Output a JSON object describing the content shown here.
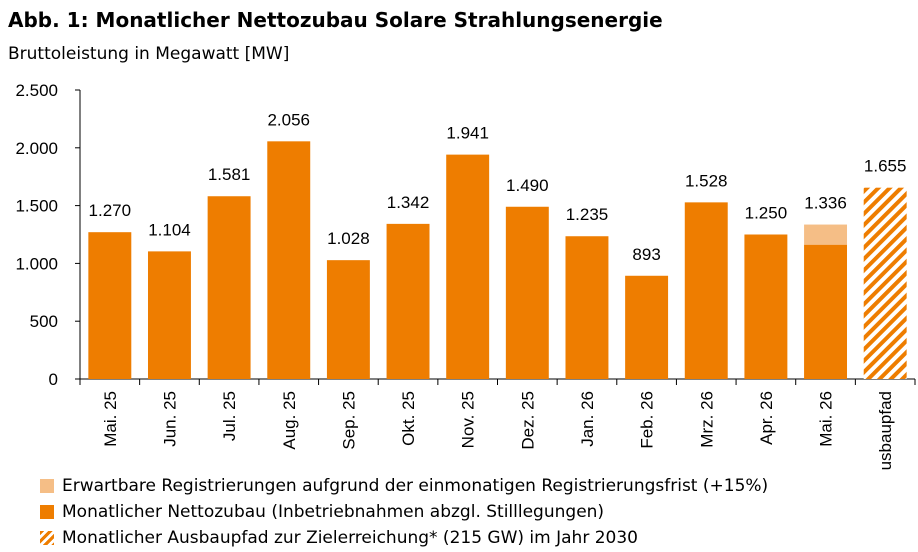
{
  "title": "Abb. 1: Monatlicher Nettozubau Solare Strahlungsenergie",
  "subtitle": "Bruttoleistung in Megawatt [MW]",
  "colors": {
    "net": "#EE7D00",
    "expected": "#F5BE86",
    "target_hatch": "#EE7D00",
    "axis": "#000000"
  },
  "legend": [
    {
      "label": "Erwartbare Registrierungen aufgrund der einmonatigen Registrierungsfrist (+15%)",
      "kind": "expected"
    },
    {
      "label": "Monatlicher Nettozubau (Inbetriebnahmen abzgl. Stilllegungen)",
      "kind": "net"
    },
    {
      "label": "Monatlicher Ausbaupfad zur Zielerreichung* (215 GW) im Jahr 2030",
      "kind": "hatch"
    }
  ],
  "chart_data": {
    "type": "bar",
    "stacked": true,
    "categories": [
      "Mai. 25",
      "Jun. 25",
      "Jul. 25",
      "Aug. 25",
      "Sep. 25",
      "Okt. 25",
      "Nov. 25",
      "Dez. 25",
      "Jan. 26",
      "Feb. 26",
      "Mrz. 26",
      "Apr. 26",
      "Mai. 26",
      "Ausbaupfad"
    ],
    "series": [
      {
        "name": "Monatlicher Nettozubau (Inbetriebnahmen abzgl. Stilllegungen)",
        "kind": "net",
        "values": [
          1270,
          1104,
          1581,
          2056,
          1028,
          1342,
          1941,
          1490,
          1235,
          893,
          1528,
          1250,
          1162,
          0
        ]
      },
      {
        "name": "Erwartbare Registrierungen aufgrund der einmonatigen Registrierungsfrist (+15%)",
        "kind": "expected",
        "values": [
          0,
          0,
          0,
          0,
          0,
          0,
          0,
          0,
          0,
          0,
          0,
          0,
          174,
          0
        ]
      },
      {
        "name": "Monatlicher Ausbaupfad zur Zielerreichung* (215 GW) im Jahr 2030",
        "kind": "hatch",
        "values": [
          0,
          0,
          0,
          0,
          0,
          0,
          0,
          0,
          0,
          0,
          0,
          0,
          0,
          1655
        ]
      }
    ],
    "data_labels": [
      "1.270",
      "1.104",
      "1.581",
      "2.056",
      "1.028",
      "1.342",
      "1.941",
      "1.490",
      "1.235",
      "893",
      "1.528",
      "1.250",
      "1.336",
      "1.655"
    ],
    "yticks": [
      0,
      500,
      1000,
      1500,
      2000,
      2500
    ],
    "ytick_labels": [
      "0",
      "500",
      "1.000",
      "1.500",
      "2.000",
      "2.500"
    ],
    "ylim": [
      0,
      2500
    ],
    "grid": false,
    "legend_position": "bottom-left"
  }
}
